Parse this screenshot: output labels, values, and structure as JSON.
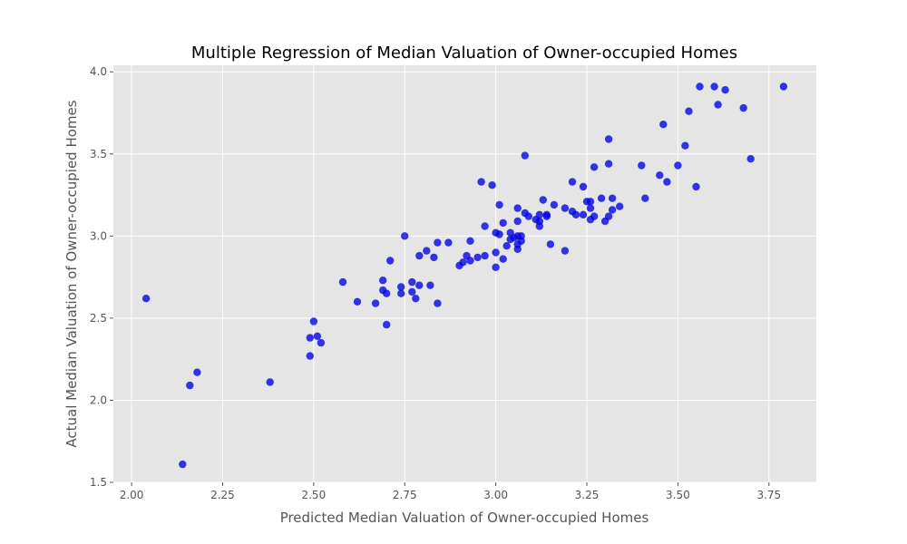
{
  "chart_data": {
    "type": "scatter",
    "title": "Multiple Regression of Median Valuation of Owner-occupied Homes",
    "xlabel": "Predicted Median Valuation of Owner-occupied Homes",
    "ylabel": "Actual Median Valuation of Owner-occupied Homes",
    "xlim": [
      1.95,
      3.88
    ],
    "ylim": [
      1.5,
      4.04
    ],
    "xticks": [
      "2.00",
      "2.25",
      "2.50",
      "2.75",
      "3.00",
      "3.25",
      "3.50",
      "3.75"
    ],
    "yticks": [
      "1.5",
      "2.0",
      "2.5",
      "3.0",
      "3.5",
      "4.0"
    ],
    "grid": true,
    "colors": {
      "background": "#e5e5e5",
      "grid": "#ffffff",
      "point": "#0000e6"
    },
    "series": [
      {
        "name": "",
        "points": [
          [
            2.04,
            2.62
          ],
          [
            2.14,
            1.61
          ],
          [
            2.16,
            2.09
          ],
          [
            2.18,
            2.17
          ],
          [
            2.38,
            2.11
          ],
          [
            2.49,
            2.27
          ],
          [
            2.49,
            2.38
          ],
          [
            2.5,
            2.48
          ],
          [
            2.51,
            2.39
          ],
          [
            2.52,
            2.35
          ],
          [
            2.58,
            2.72
          ],
          [
            2.62,
            2.6
          ],
          [
            2.67,
            2.59
          ],
          [
            2.69,
            2.73
          ],
          [
            2.69,
            2.67
          ],
          [
            2.7,
            2.65
          ],
          [
            2.7,
            2.46
          ],
          [
            2.71,
            2.85
          ],
          [
            2.74,
            2.69
          ],
          [
            2.74,
            2.65
          ],
          [
            2.75,
            3.0
          ],
          [
            2.77,
            2.72
          ],
          [
            2.77,
            2.66
          ],
          [
            2.78,
            2.62
          ],
          [
            2.79,
            2.88
          ],
          [
            2.79,
            2.7
          ],
          [
            2.81,
            2.91
          ],
          [
            2.82,
            2.7
          ],
          [
            2.83,
            2.87
          ],
          [
            2.84,
            2.96
          ],
          [
            2.84,
            2.59
          ],
          [
            2.87,
            2.96
          ],
          [
            2.9,
            2.82
          ],
          [
            2.91,
            2.84
          ],
          [
            2.92,
            2.88
          ],
          [
            2.93,
            2.97
          ],
          [
            2.93,
            2.85
          ],
          [
            2.95,
            2.87
          ],
          [
            2.96,
            3.33
          ],
          [
            2.97,
            2.88
          ],
          [
            2.97,
            3.06
          ],
          [
            2.99,
            3.31
          ],
          [
            3.0,
            3.02
          ],
          [
            3.0,
            2.9
          ],
          [
            3.0,
            2.81
          ],
          [
            3.01,
            3.01
          ],
          [
            3.01,
            3.19
          ],
          [
            3.02,
            3.08
          ],
          [
            3.02,
            2.86
          ],
          [
            3.03,
            2.94
          ],
          [
            3.04,
            3.02
          ],
          [
            3.04,
            2.98
          ],
          [
            3.05,
            2.99
          ],
          [
            3.06,
            2.92
          ],
          [
            3.06,
            2.95
          ],
          [
            3.06,
            3.0
          ],
          [
            3.06,
            3.09
          ],
          [
            3.06,
            3.17
          ],
          [
            3.07,
            2.97
          ],
          [
            3.07,
            3.0
          ],
          [
            3.08,
            3.49
          ],
          [
            3.08,
            3.14
          ],
          [
            3.09,
            3.12
          ],
          [
            3.11,
            3.1
          ],
          [
            3.12,
            3.13
          ],
          [
            3.12,
            3.06
          ],
          [
            3.12,
            3.09
          ],
          [
            3.13,
            3.22
          ],
          [
            3.14,
            3.13
          ],
          [
            3.14,
            3.12
          ],
          [
            3.15,
            2.95
          ],
          [
            3.16,
            3.19
          ],
          [
            3.19,
            2.91
          ],
          [
            3.19,
            3.17
          ],
          [
            3.21,
            3.15
          ],
          [
            3.21,
            3.33
          ],
          [
            3.22,
            3.13
          ],
          [
            3.24,
            3.3
          ],
          [
            3.24,
            3.13
          ],
          [
            3.25,
            3.21
          ],
          [
            3.26,
            3.21
          ],
          [
            3.26,
            3.1
          ],
          [
            3.26,
            3.17
          ],
          [
            3.27,
            3.42
          ],
          [
            3.27,
            3.12
          ],
          [
            3.29,
            3.23
          ],
          [
            3.3,
            3.09
          ],
          [
            3.31,
            3.44
          ],
          [
            3.31,
            3.12
          ],
          [
            3.31,
            3.59
          ],
          [
            3.32,
            3.23
          ],
          [
            3.32,
            3.16
          ],
          [
            3.34,
            3.18
          ],
          [
            3.4,
            3.43
          ],
          [
            3.41,
            3.23
          ],
          [
            3.45,
            3.37
          ],
          [
            3.46,
            3.68
          ],
          [
            3.47,
            3.33
          ],
          [
            3.5,
            3.43
          ],
          [
            3.52,
            3.55
          ],
          [
            3.53,
            3.76
          ],
          [
            3.55,
            3.3
          ],
          [
            3.56,
            3.91
          ],
          [
            3.6,
            3.91
          ],
          [
            3.61,
            3.8
          ],
          [
            3.63,
            3.89
          ],
          [
            3.68,
            3.78
          ],
          [
            3.7,
            3.47
          ],
          [
            3.79,
            3.91
          ]
        ]
      }
    ]
  }
}
